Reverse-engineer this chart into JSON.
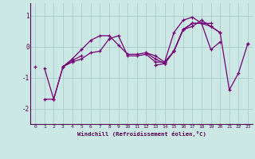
{
  "xlabel": "Windchill (Refroidissement éolien,°C)",
  "background_color": "#cce8e4",
  "line_color": "#770077",
  "grid_color": "#aacccc",
  "xlim": [
    -0.5,
    23.5
  ],
  "ylim": [
    -2.5,
    1.4
  ],
  "xticks": [
    0,
    1,
    2,
    3,
    4,
    5,
    6,
    7,
    8,
    9,
    10,
    11,
    12,
    13,
    14,
    15,
    16,
    17,
    18,
    19,
    20,
    21,
    22,
    23
  ],
  "yticks": [
    -2,
    -1,
    0,
    1
  ],
  "series": [
    [
      null,
      -0.7,
      -1.7,
      -0.65,
      -0.5,
      -0.4,
      -0.2,
      -0.15,
      0.25,
      0.35,
      -0.3,
      -0.3,
      -0.25,
      -0.5,
      -0.5,
      -0.15,
      0.55,
      0.75,
      0.75,
      0.75,
      null,
      null,
      null,
      null
    ],
    [
      null,
      -1.7,
      -1.7,
      -0.65,
      -0.45,
      -0.3,
      null,
      null,
      null,
      null,
      null,
      null,
      null,
      -0.6,
      -0.55,
      -0.15,
      0.55,
      0.75,
      0.75,
      0.65,
      0.45,
      -1.4,
      -0.85,
      0.1
    ],
    [
      null,
      null,
      null,
      -0.65,
      -0.4,
      -0.1,
      0.2,
      0.35,
      0.35,
      0.05,
      -0.25,
      -0.25,
      -0.2,
      -0.4,
      -0.55,
      -0.15,
      0.55,
      0.65,
      0.85,
      0.65,
      0.45,
      null,
      null,
      null
    ],
    [
      -0.65,
      null,
      null,
      null,
      null,
      null,
      null,
      null,
      null,
      null,
      null,
      null,
      -0.2,
      -0.3,
      -0.5,
      0.45,
      0.85,
      0.95,
      0.75,
      -0.1,
      0.15,
      null,
      null,
      0.1
    ]
  ]
}
